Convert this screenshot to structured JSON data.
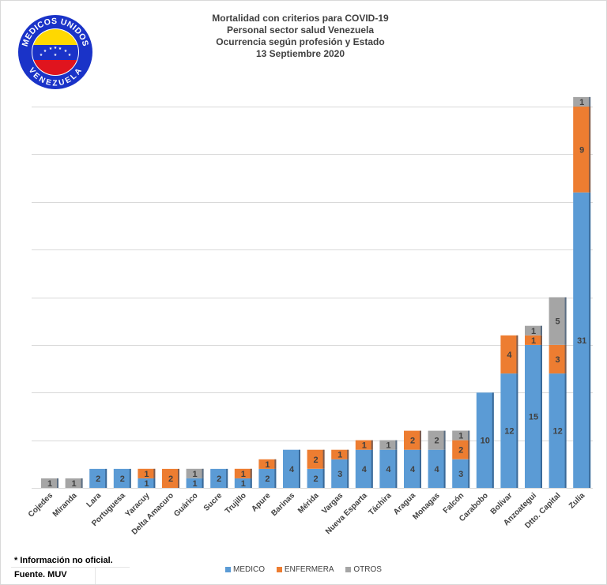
{
  "titles": {
    "line1": "Mortalidad con criterios para COVID-19",
    "line2": "Personal sector salud Venezuela",
    "line3": "Ocurrencia según profesión y Estado",
    "line4": "13 Septiembre 2020"
  },
  "logo": {
    "top_text": "MEDICOS UNIDOS",
    "bottom_text": "VENEZUELA",
    "colors": {
      "ring": "#1a33c8",
      "yellow": "#ffd800",
      "blue": "#1a33c8",
      "red": "#e0141e"
    }
  },
  "legend": {
    "medico": "MEDICO",
    "enfermera": "ENFERMERA",
    "otros": "OTROS"
  },
  "footnote": "* Información no oficial.",
  "source": "Fuente. MUV",
  "colors": {
    "medico": "#5b9bd5",
    "enfermera": "#ed7d31",
    "otros": "#a5a5a5",
    "grid": "#d9d9d9",
    "label": "#404040"
  },
  "chart_data": {
    "type": "bar",
    "stacked": true,
    "ylim": [
      0,
      41
    ],
    "grid": true,
    "legend_position": "bottom",
    "categories": [
      "Cojedes",
      "Miranda",
      "Lara",
      "Portuguesa",
      "Yaracuy",
      "Delta Amacuro",
      "Guárico",
      "Sucre",
      "Trujillo",
      "Apure",
      "Barinas",
      "Mérida",
      "Vargas",
      "Nueva Esparta",
      "Táchira",
      "Aragua",
      "Monagas",
      "Falcón",
      "Carabobo",
      "Bolívar",
      "Anzoategui",
      "Dtto. Capital",
      "Zulia"
    ],
    "series": [
      {
        "name": "MEDICO",
        "values": [
          0,
          0,
          2,
          2,
          1,
          0,
          1,
          2,
          1,
          2,
          4,
          2,
          3,
          4,
          4,
          4,
          4,
          3,
          10,
          12,
          15,
          12,
          31
        ]
      },
      {
        "name": "ENFERMERA",
        "values": [
          0,
          0,
          0,
          0,
          1,
          2,
          0,
          0,
          1,
          1,
          0,
          2,
          1,
          1,
          0,
          2,
          0,
          2,
          0,
          4,
          1,
          3,
          9
        ]
      },
      {
        "name": "OTROS",
        "values": [
          1,
          1,
          0,
          0,
          0,
          0,
          1,
          0,
          0,
          0,
          0,
          0,
          0,
          0,
          1,
          0,
          2,
          1,
          0,
          0,
          1,
          5,
          1
        ]
      }
    ],
    "labels": {
      "MEDICO": [
        "",
        "",
        "2",
        "2",
        "1",
        "",
        "1",
        "2",
        "1",
        "2",
        "4",
        "2",
        "3",
        "4",
        "4",
        "4",
        "4",
        "3",
        "10",
        "12",
        "15",
        "12",
        "31"
      ],
      "ENFERMERA": [
        "",
        "",
        "",
        "",
        "1",
        "2",
        "",
        "",
        "1",
        "1",
        "",
        "2",
        "1",
        "1",
        "",
        "2",
        "",
        "2",
        "",
        "4",
        "1",
        "3",
        "9"
      ],
      "OTROS": [
        "1",
        "1",
        "",
        "",
        "",
        "",
        "1",
        "",
        "",
        "",
        "",
        "",
        "",
        "",
        "1",
        "",
        "2",
        "1",
        "",
        "",
        "1",
        "5",
        "1"
      ]
    }
  }
}
